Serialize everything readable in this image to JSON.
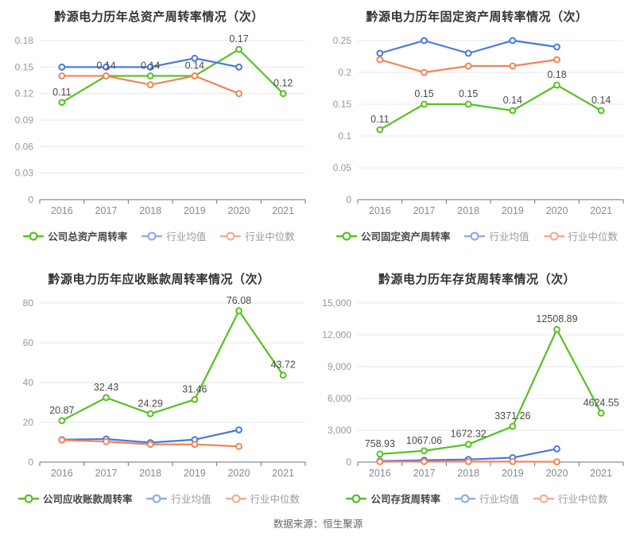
{
  "footer": {
    "source_text": "数据来源：恒生聚源"
  },
  "colors": {
    "company": "#55c220",
    "industry_mean": "#4a78dc",
    "industry_median": "#f0845a",
    "legend_company": "#55c220",
    "legend_industry_mean": "#8fadea",
    "legend_industry_median": "#f6ac92",
    "grid": "#e5e7f0",
    "axis": "#6e7079",
    "tick_label": "#999999",
    "x_label": "#8a8a8a",
    "point_label": "#4a4a4a"
  },
  "chart_data": [
    {
      "type": "line",
      "title": "黔源电力历年总资产周转率情况（次）",
      "categories": [
        "2016",
        "2017",
        "2018",
        "2019",
        "2020",
        "2021"
      ],
      "ylim": [
        0,
        0.18
      ],
      "yticks": [
        {
          "v": 0,
          "label": "0"
        },
        {
          "v": 0.03,
          "label": "0.03"
        },
        {
          "v": 0.06,
          "label": "0.06"
        },
        {
          "v": 0.09,
          "label": "0.09"
        },
        {
          "v": 0.12,
          "label": "0.12"
        },
        {
          "v": 0.15,
          "label": "0.15"
        },
        {
          "v": 0.18,
          "label": "0.18"
        }
      ],
      "series": [
        {
          "name": "公司总资产周转率",
          "role": "company",
          "values": [
            0.11,
            0.14,
            0.14,
            0.14,
            0.17,
            0.12
          ],
          "point_labels": [
            "0.11",
            "0.14",
            "0.14",
            "0.14",
            "0.17",
            "0.12"
          ]
        },
        {
          "name": "行业均值",
          "role": "industry_mean",
          "values": [
            0.15,
            0.15,
            0.15,
            0.16,
            0.15
          ]
        },
        {
          "name": "行业中位数",
          "role": "industry_median",
          "values": [
            0.14,
            0.14,
            0.13,
            0.14,
            0.12
          ]
        }
      ],
      "legend": [
        "公司总资产周转率",
        "行业均值",
        "行业中位数"
      ]
    },
    {
      "type": "line",
      "title": "黔源电力历年固定资产周转率情况（次）",
      "categories": [
        "2016",
        "2017",
        "2018",
        "2019",
        "2020",
        "2021"
      ],
      "ylim": [
        0,
        0.25
      ],
      "yticks": [
        {
          "v": 0,
          "label": "0"
        },
        {
          "v": 0.05,
          "label": "0.05"
        },
        {
          "v": 0.1,
          "label": "0.1"
        },
        {
          "v": 0.15,
          "label": "0.15"
        },
        {
          "v": 0.2,
          "label": "0.2"
        },
        {
          "v": 0.25,
          "label": "0.25"
        }
      ],
      "series": [
        {
          "name": "公司固定资产周转率",
          "role": "company",
          "values": [
            0.11,
            0.15,
            0.15,
            0.14,
            0.18,
            0.14
          ],
          "point_labels": [
            "0.11",
            "0.15",
            "0.15",
            "0.14",
            "0.18",
            "0.14"
          ]
        },
        {
          "name": "行业均值",
          "role": "industry_mean",
          "values": [
            0.23,
            0.25,
            0.23,
            0.25,
            0.24
          ]
        },
        {
          "name": "行业中位数",
          "role": "industry_median",
          "values": [
            0.22,
            0.2,
            0.21,
            0.21,
            0.22
          ]
        }
      ],
      "legend": [
        "公司固定资产周转率",
        "行业均值",
        "行业中位数"
      ]
    },
    {
      "type": "line",
      "title": "黔源电力历年应收账款周转率情况（次）",
      "categories": [
        "2016",
        "2017",
        "2018",
        "2019",
        "2020",
        "2021"
      ],
      "ylim": [
        0,
        80
      ],
      "yticks": [
        {
          "v": 0,
          "label": "0"
        },
        {
          "v": 20,
          "label": "20"
        },
        {
          "v": 40,
          "label": "40"
        },
        {
          "v": 60,
          "label": "60"
        },
        {
          "v": 80,
          "label": "80"
        }
      ],
      "series": [
        {
          "name": "公司应收账款周转率",
          "role": "company",
          "values": [
            20.87,
            32.43,
            24.29,
            31.46,
            76.08,
            43.72
          ],
          "point_labels": [
            "20.87",
            "32.43",
            "24.29",
            "31.46",
            "76.08",
            "43.72"
          ]
        },
        {
          "name": "行业均值",
          "role": "industry_mean",
          "values": [
            11.3,
            11.6,
            9.8,
            11.3,
            16.2
          ]
        },
        {
          "name": "行业中位数",
          "role": "industry_median",
          "values": [
            11.1,
            10.3,
            8.9,
            8.9,
            7.9
          ]
        }
      ],
      "legend": [
        "公司应收账款周转率",
        "行业均值",
        "行业中位数"
      ]
    },
    {
      "type": "line",
      "title": "黔源电力历年存货周转率情况（次）",
      "categories": [
        "2016",
        "2017",
        "2018",
        "2019",
        "2020",
        "2021"
      ],
      "ylim": [
        0,
        15000
      ],
      "yticks": [
        {
          "v": 0,
          "label": "0"
        },
        {
          "v": 3000,
          "label": "3,000"
        },
        {
          "v": 6000,
          "label": "6,000"
        },
        {
          "v": 9000,
          "label": "9,000"
        },
        {
          "v": 12000,
          "label": "12,000"
        },
        {
          "v": 15000,
          "label": "15,000"
        }
      ],
      "series": [
        {
          "name": "公司存货周转率",
          "role": "company",
          "values": [
            758.93,
            1067.06,
            1672.32,
            3371.26,
            12508.89,
            4624.55
          ],
          "point_labels": [
            "758.93",
            "1067.06",
            "1672.32",
            "3371.26",
            "12508.89",
            "4624.55"
          ]
        },
        {
          "name": "行业均值",
          "role": "industry_mean",
          "values": [
            100,
            180,
            250,
            420,
            1250
          ]
        },
        {
          "name": "行业中位数",
          "role": "industry_median",
          "values": [
            40,
            45,
            45,
            50,
            25
          ]
        }
      ],
      "legend": [
        "公司存货周转率",
        "行业均值",
        "行业中位数"
      ]
    }
  ]
}
